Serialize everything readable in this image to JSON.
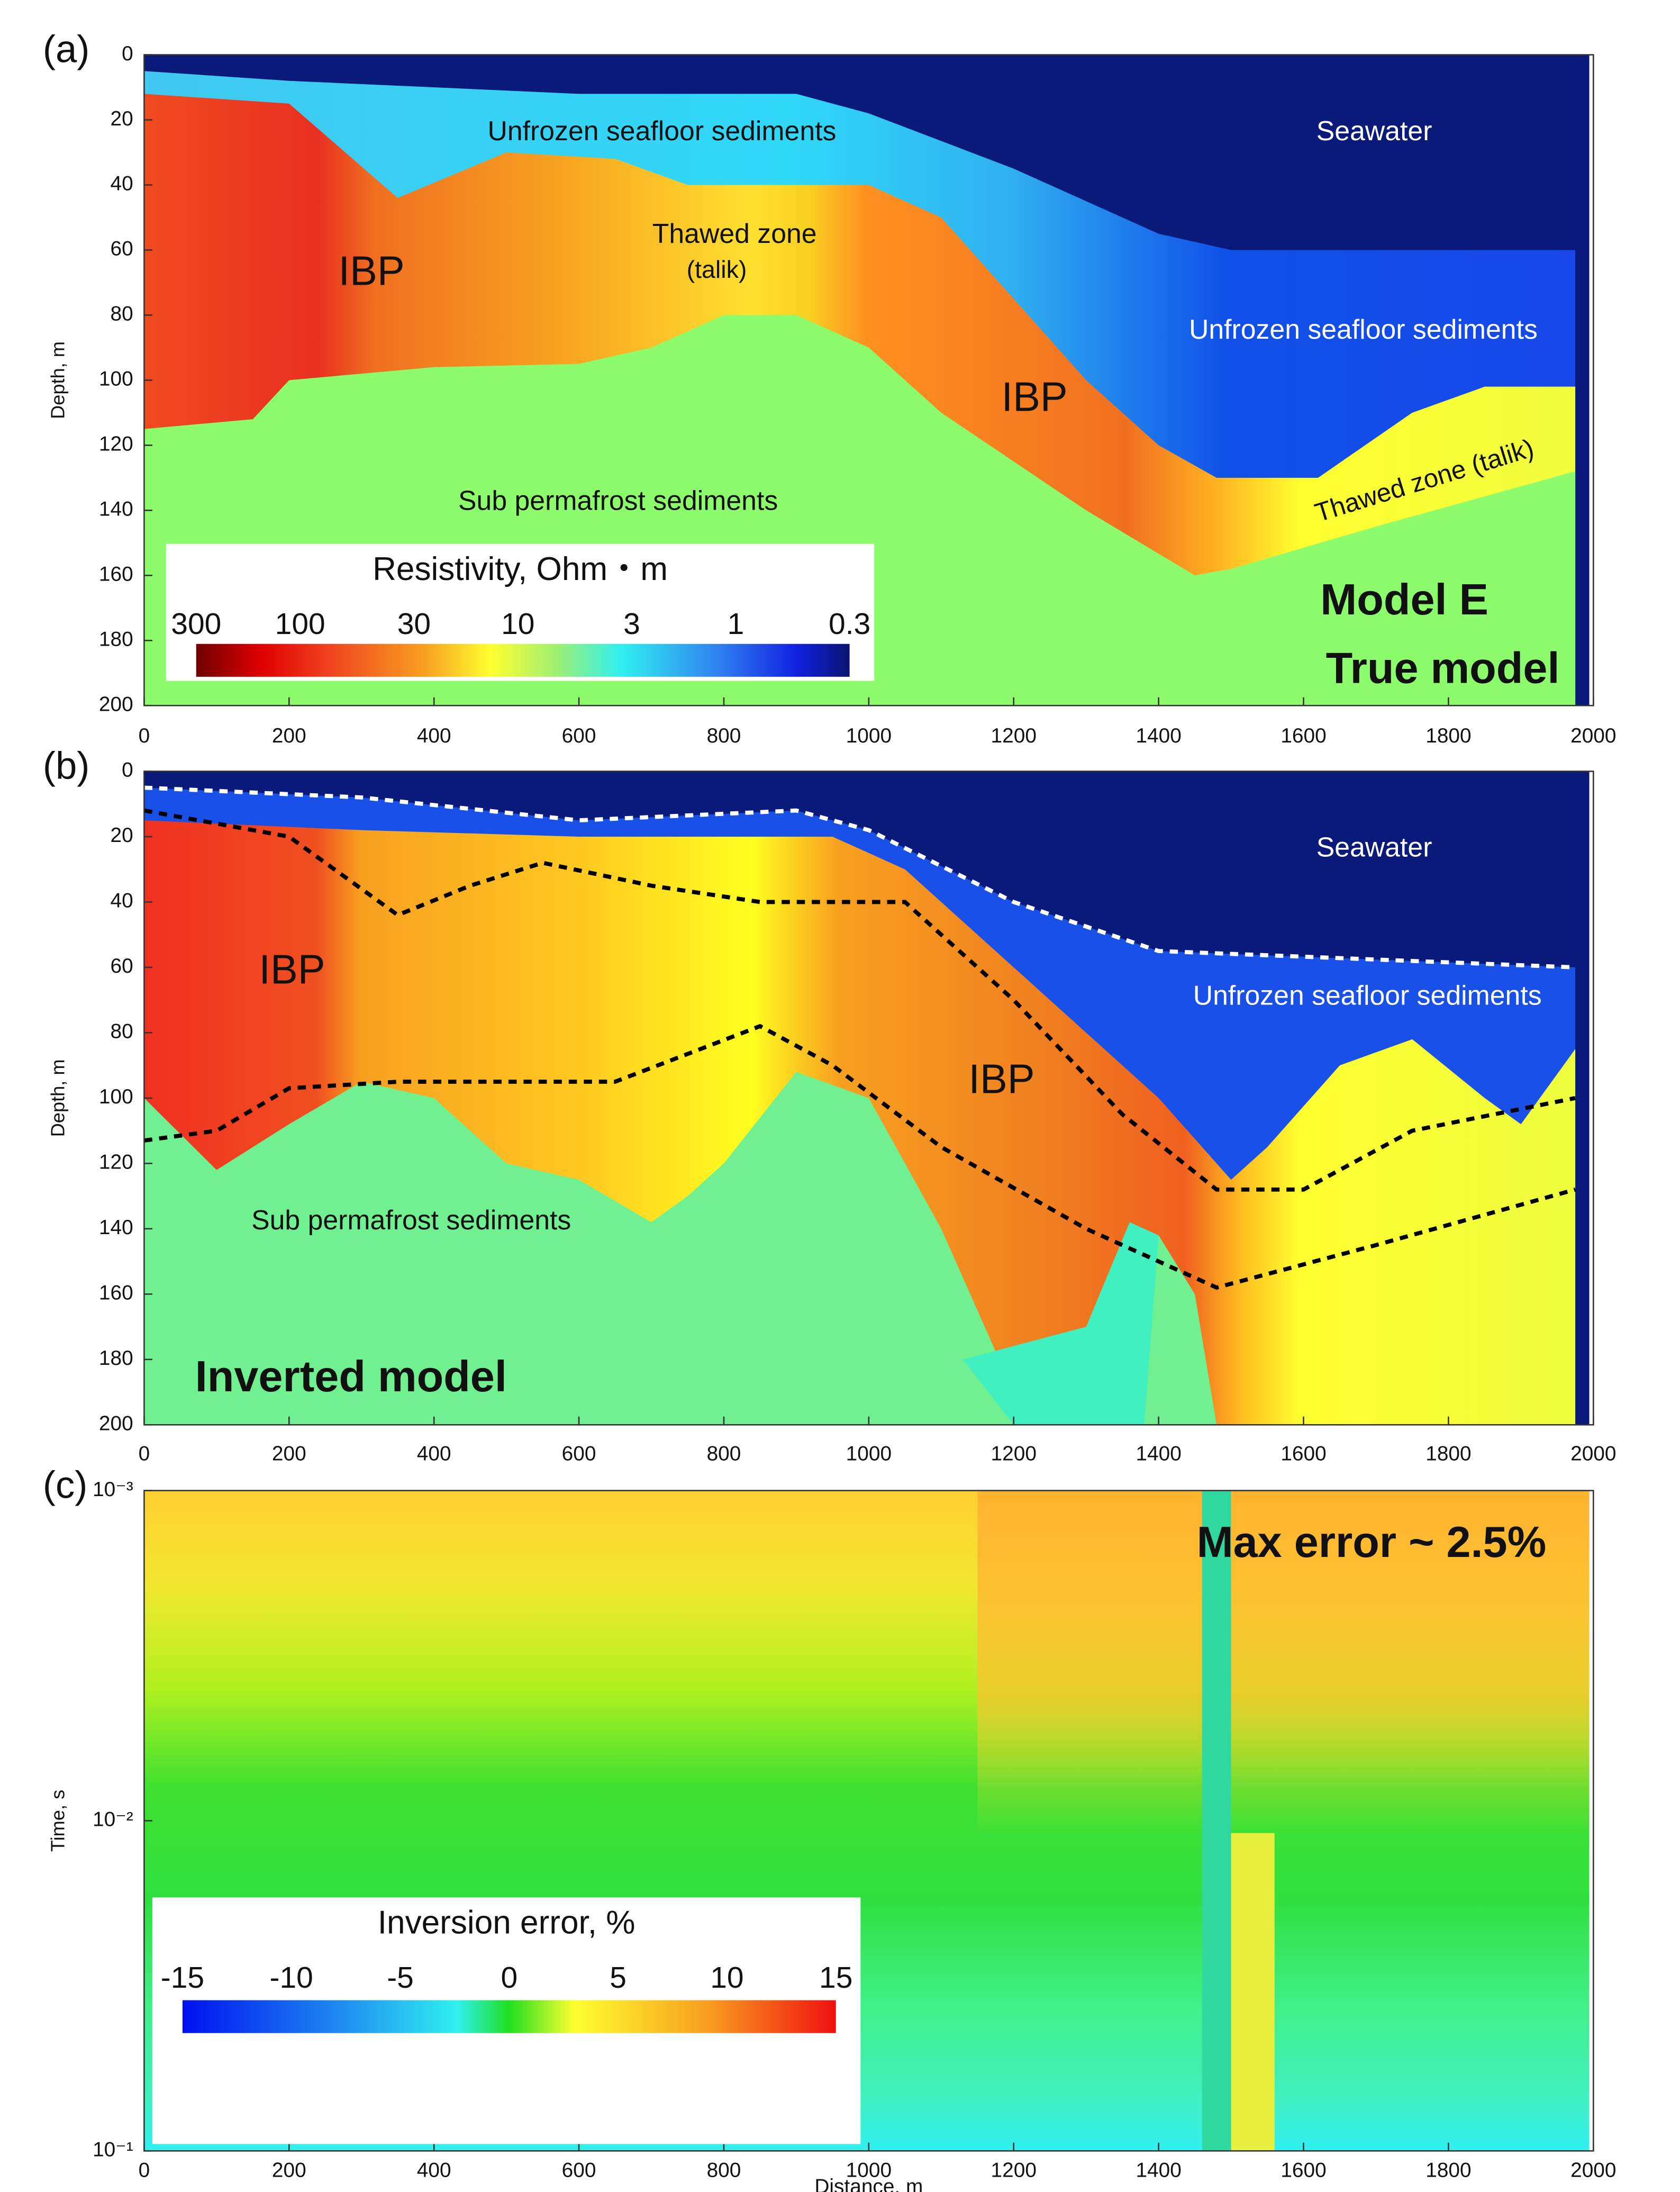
{
  "chart_data": [
    {
      "type": "heatmap",
      "panel_label": "(a)",
      "ylabel": "Depth, m",
      "xlim": [
        0,
        2000
      ],
      "xticks": [
        0,
        200,
        400,
        600,
        800,
        1000,
        1200,
        1400,
        1600,
        1800,
        2000
      ],
      "ylim": [
        0,
        200
      ],
      "y_inverted": true,
      "yticks": [
        0,
        20,
        40,
        60,
        80,
        100,
        120,
        140,
        160,
        180,
        200
      ],
      "annotations": [
        "Unfrozen seafloor sediments",
        "Seawater",
        "Thawed zone",
        "(talik)",
        "IBP",
        "IBP",
        "Unfrozen seafloor sediments",
        "Thawed zone (talik)",
        "Sub permafrost sediments",
        "Model E",
        "True model"
      ],
      "colorbar": {
        "title": "Resistivity, Ohm・m",
        "ticks": [
          300,
          100,
          30,
          10,
          3,
          1,
          0.3
        ],
        "log": true
      }
    },
    {
      "type": "heatmap",
      "panel_label": "(b)",
      "ylabel": "Depth, m",
      "xlim": [
        0,
        2000
      ],
      "xticks": [
        0,
        200,
        400,
        600,
        800,
        1000,
        1200,
        1400,
        1600,
        1800,
        2000
      ],
      "ylim": [
        0,
        200
      ],
      "y_inverted": true,
      "yticks": [
        0,
        20,
        40,
        60,
        80,
        100,
        120,
        140,
        160,
        180,
        200
      ],
      "annotations": [
        "Seawater",
        "IBP",
        "Unfrozen seafloor sediments",
        "IBP",
        "Sub permafrost sediments",
        "Inverted model"
      ]
    },
    {
      "type": "heatmap",
      "panel_label": "(c)",
      "ylabel": "Time, s",
      "xlabel": "Distance, m",
      "xlim": [
        0,
        2000
      ],
      "xticks": [
        0,
        200,
        400,
        600,
        800,
        1000,
        1200,
        1400,
        1600,
        1800,
        2000
      ],
      "ylim": [
        0.001,
        0.1
      ],
      "y_inverted": true,
      "log_y": true,
      "yticks": [
        {
          "value": 0.001,
          "label": "10⁻³"
        },
        {
          "value": 0.01,
          "label": "10⁻²"
        },
        {
          "value": 0.1,
          "label": "10⁻¹"
        }
      ],
      "annotations": [
        "Max error ~ 2.5%"
      ],
      "colorbar": {
        "title": "Inversion error, %",
        "ticks": [
          -15,
          -10,
          -5,
          0,
          5,
          10,
          15
        ],
        "log": false
      }
    }
  ]
}
